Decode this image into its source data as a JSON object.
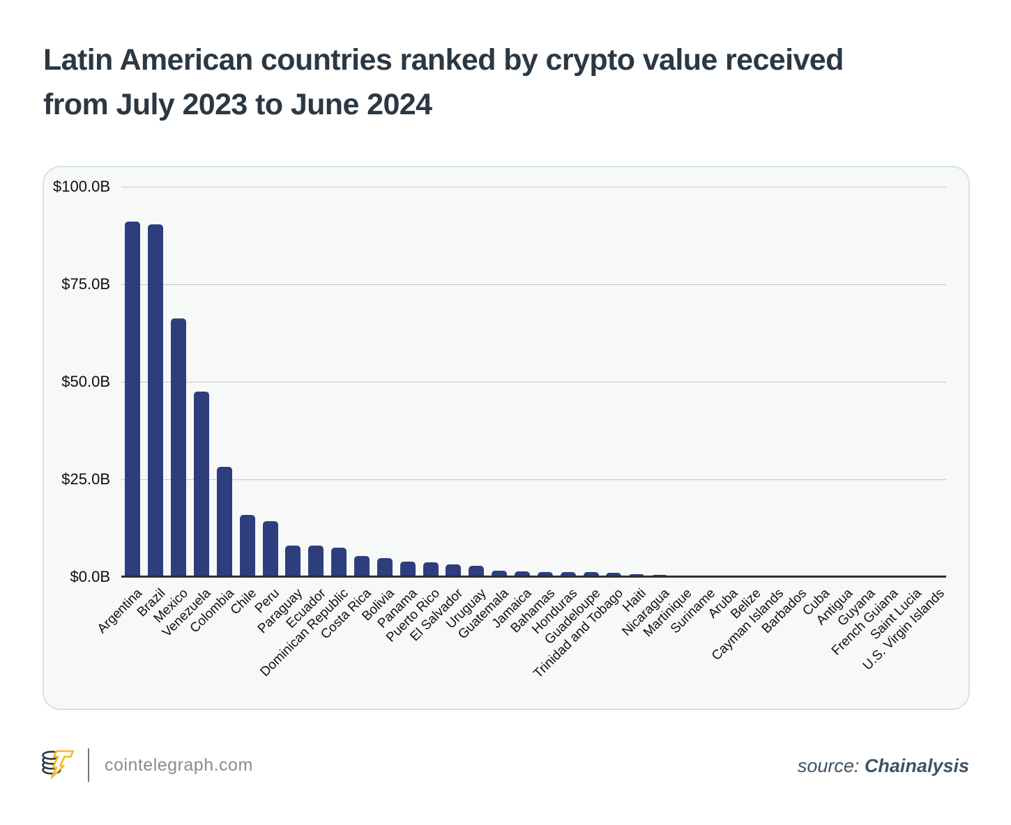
{
  "header": {
    "title": "Latin American countries ranked by crypto value received from July 2023 to June 2024"
  },
  "chart_data": {
    "type": "bar",
    "title": "Latin American countries ranked by crypto value received from July 2023 to June 2024",
    "unit": "USD billions",
    "categories": [
      "Argentina",
      "Brazil",
      "Mexico",
      "Venezuela",
      "Colombia",
      "Chile",
      "Peru",
      "Paraguay",
      "Ecuador",
      "Dominican Republic",
      "Costa Rica",
      "Bolivia",
      "Panama",
      "Puerto Rico",
      "El Salvador",
      "Uruguay",
      "Guatemala",
      "Jamaica",
      "Bahamas",
      "Honduras",
      "Guadeloupe",
      "Trinidad and Tobago",
      "Haiti",
      "Nicaragua",
      "Martinique",
      "Suriname",
      "Aruba",
      "Belize",
      "Cayman Islands",
      "Barbados",
      "Cuba",
      "Antigua",
      "Guyana",
      "French Guiana",
      "Saint Lucia",
      "U.S. Virgin Islands"
    ],
    "values": [
      91.1,
      90.3,
      66.2,
      47.5,
      28.2,
      15.9,
      14.2,
      8.1,
      8.0,
      7.5,
      5.4,
      4.8,
      3.9,
      3.8,
      3.2,
      2.9,
      1.6,
      1.5,
      1.3,
      1.25,
      1.2,
      1.1,
      0.7,
      0.6,
      0.3,
      0.12,
      0.1,
      0.08,
      0.07,
      0.06,
      0.05,
      0.04,
      0.03,
      0.03,
      0.02,
      0.02
    ],
    "ylim": [
      0,
      100
    ],
    "y_ticks": [
      {
        "value": 100,
        "label": "$100.0B"
      },
      {
        "value": 75,
        "label": "$75.0B"
      },
      {
        "value": 50,
        "label": "$50.0B"
      },
      {
        "value": 25,
        "label": "$25.0B"
      },
      {
        "value": 0,
        "label": "$0.0B"
      }
    ],
    "grid": true,
    "legend": false,
    "xlabel": "",
    "ylabel": "",
    "bar_color": "#2e3e7c"
  },
  "footer": {
    "brand": "cointelegraph.com",
    "source_label": "source: ",
    "source_name": "Chainalysis",
    "logo": "cointelegraph-coin-bolt-logo"
  },
  "colors": {
    "bar": "#2e3e7c",
    "panel_bg": "#f7f8f8",
    "panel_border": "#d3e1e8",
    "grid": "#c6c6c8",
    "axis": "#2e2e2e",
    "title": "#2b3844",
    "brand_text": "#858d93",
    "source_text": "#3f5263",
    "logo_gold": "#f3b82c",
    "logo_dark": "#2b3742"
  }
}
